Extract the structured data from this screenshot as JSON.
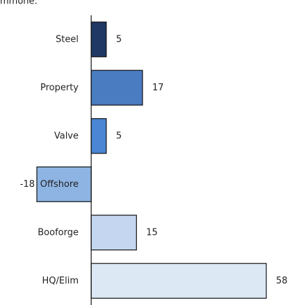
{
  "chart_data": {
    "type": "barh",
    "title": "mmone:",
    "categories": [
      "Steel",
      "Property",
      "Valve",
      "Offshore",
      "Booforge",
      "HQ/Elim"
    ],
    "values": [
      5,
      17,
      5,
      -18,
      15,
      58
    ],
    "colors": [
      "#1f3864",
      "#4a7cc1",
      "#4a86d4",
      "#8eb4e3",
      "#c5d7f0",
      "#dde8f5"
    ],
    "xlim": [
      -18,
      58
    ]
  }
}
